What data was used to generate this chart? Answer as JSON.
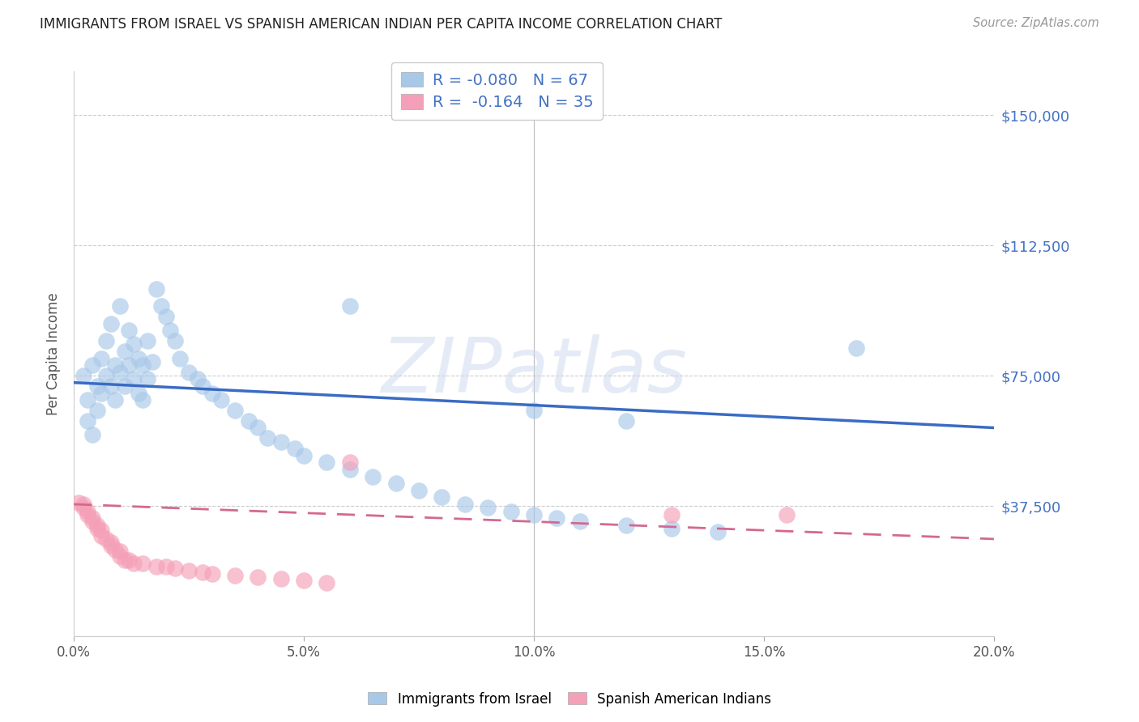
{
  "title": "IMMIGRANTS FROM ISRAEL VS SPANISH AMERICAN INDIAN PER CAPITA INCOME CORRELATION CHART",
  "source": "Source: ZipAtlas.com",
  "ylabel": "Per Capita Income",
  "xlim": [
    0.0,
    0.2
  ],
  "ylim": [
    0,
    162500
  ],
  "ytick_vals": [
    0,
    37500,
    75000,
    112500,
    150000
  ],
  "ytick_labels": [
    "",
    "$37,500",
    "$75,000",
    "$112,500",
    "$150,000"
  ],
  "xtick_vals": [
    0.0,
    0.05,
    0.1,
    0.15,
    0.2
  ],
  "xtick_labels": [
    "0.0%",
    "5.0%",
    "10.0%",
    "15.0%",
    "20.0%"
  ],
  "blue_R": -0.08,
  "blue_N": 67,
  "pink_R": -0.164,
  "pink_N": 35,
  "blue_color": "#a8c8e8",
  "pink_color": "#f4a0b8",
  "blue_line_color": "#3a6bc4",
  "pink_line_color": "#d46890",
  "watermark_text": "ZIPatlas",
  "legend_label_blue": "Immigrants from Israel",
  "legend_label_pink": "Spanish American Indians",
  "blue_x": [
    0.002,
    0.003,
    0.003,
    0.004,
    0.004,
    0.005,
    0.005,
    0.006,
    0.006,
    0.007,
    0.007,
    0.008,
    0.008,
    0.009,
    0.009,
    0.01,
    0.01,
    0.011,
    0.011,
    0.012,
    0.012,
    0.013,
    0.013,
    0.014,
    0.014,
    0.015,
    0.015,
    0.016,
    0.016,
    0.017,
    0.018,
    0.019,
    0.02,
    0.021,
    0.022,
    0.023,
    0.025,
    0.027,
    0.028,
    0.03,
    0.032,
    0.035,
    0.038,
    0.04,
    0.042,
    0.045,
    0.048,
    0.05,
    0.055,
    0.06,
    0.065,
    0.07,
    0.075,
    0.08,
    0.085,
    0.09,
    0.095,
    0.1,
    0.105,
    0.11,
    0.12,
    0.13,
    0.14,
    0.06,
    0.17,
    0.1,
    0.12
  ],
  "blue_y": [
    75000,
    68000,
    62000,
    78000,
    58000,
    72000,
    65000,
    80000,
    70000,
    85000,
    75000,
    90000,
    72000,
    78000,
    68000,
    95000,
    76000,
    82000,
    72000,
    88000,
    78000,
    84000,
    74000,
    80000,
    70000,
    78000,
    68000,
    85000,
    74000,
    79000,
    100000,
    95000,
    92000,
    88000,
    85000,
    80000,
    76000,
    74000,
    72000,
    70000,
    68000,
    65000,
    62000,
    60000,
    57000,
    56000,
    54000,
    52000,
    50000,
    48000,
    46000,
    44000,
    42000,
    40000,
    38000,
    37000,
    36000,
    35000,
    34000,
    33000,
    32000,
    31000,
    30000,
    95000,
    83000,
    65000,
    62000
  ],
  "pink_x": [
    0.001,
    0.002,
    0.003,
    0.003,
    0.004,
    0.004,
    0.005,
    0.005,
    0.006,
    0.006,
    0.007,
    0.008,
    0.008,
    0.009,
    0.01,
    0.01,
    0.011,
    0.012,
    0.013,
    0.015,
    0.018,
    0.02,
    0.022,
    0.025,
    0.028,
    0.03,
    0.035,
    0.04,
    0.045,
    0.05,
    0.055,
    0.06,
    0.13,
    0.155,
    0.002
  ],
  "pink_y": [
    38500,
    37000,
    36000,
    35000,
    34000,
    33000,
    32000,
    31000,
    30500,
    29000,
    28000,
    27000,
    26000,
    25000,
    24500,
    23000,
    22000,
    22000,
    21000,
    21000,
    20000,
    20000,
    19500,
    19000,
    18500,
    18000,
    17500,
    17000,
    16500,
    16000,
    15500,
    50000,
    35000,
    35000,
    38000
  ],
  "blue_trend_x": [
    0.0,
    0.2
  ],
  "blue_trend_y": [
    73000,
    60000
  ],
  "pink_trend_x": [
    0.0,
    0.2
  ],
  "pink_trend_y": [
    38000,
    28000
  ]
}
